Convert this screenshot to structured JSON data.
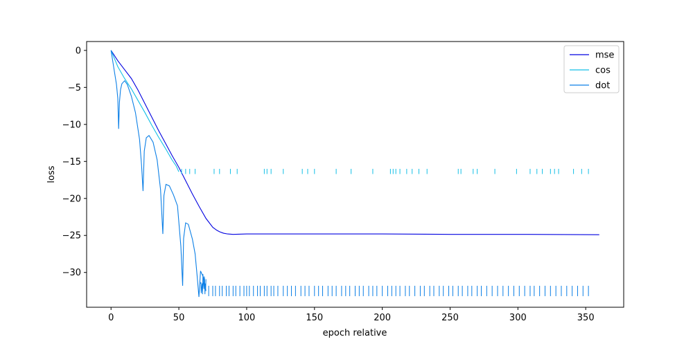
{
  "chart_data": {
    "type": "line",
    "title": "",
    "xlabel": "epoch relative",
    "ylabel": "loss",
    "xlim": [
      -18,
      378
    ],
    "ylim": [
      -34.7,
      1.2
    ],
    "xticks": [
      0,
      50,
      100,
      150,
      200,
      250,
      300,
      350
    ],
    "yticks": [
      0,
      -5,
      -10,
      -15,
      -20,
      -25,
      -30
    ],
    "grid": false,
    "legend_position": "top-right",
    "series": [
      {
        "name": "mse",
        "color": "#0000e0",
        "x": [
          0,
          5,
          10,
          15,
          20,
          25,
          30,
          35,
          40,
          45,
          50,
          55,
          60,
          65,
          70,
          75,
          78,
          80,
          83,
          86,
          90,
          100,
          150,
          200,
          250,
          300,
          360
        ],
        "y": [
          0,
          -1.4,
          -2.6,
          -3.8,
          -5.4,
          -7.2,
          -9.0,
          -10.8,
          -12.5,
          -14.2,
          -15.8,
          -17.6,
          -19.4,
          -21.1,
          -22.7,
          -23.9,
          -24.3,
          -24.5,
          -24.7,
          -24.8,
          -24.85,
          -24.8,
          -24.8,
          -24.8,
          -24.85,
          -24.85,
          -24.9
        ]
      },
      {
        "name": "cos",
        "color": "#12bfe6",
        "x": [
          0,
          5,
          10,
          15,
          20,
          25,
          30,
          35,
          40,
          45,
          48,
          50
        ],
        "y": [
          0,
          -2.2,
          -3.8,
          -5.2,
          -6.8,
          -8.4,
          -10.1,
          -11.7,
          -13.2,
          -14.8,
          -15.6,
          -16.4
        ],
        "spikes_x": [
          52,
          55,
          58,
          62,
          76,
          80,
          88,
          93,
          113,
          115,
          118,
          127,
          141,
          145,
          150,
          166,
          177,
          193,
          206,
          208,
          210,
          213,
          218,
          222,
          227,
          233,
          256,
          258,
          267,
          270,
          283,
          299,
          309,
          314,
          318,
          324,
          327,
          330,
          341,
          347,
          352
        ],
        "spikes_from": -16.7,
        "spikes_to": -16.0
      },
      {
        "name": "dot",
        "color": "#0b7fe6",
        "x": [
          0,
          2,
          4,
          5,
          5.6,
          6.2,
          7,
          8,
          10,
          12,
          15,
          18,
          21,
          22.5,
          23.6,
          24.5,
          26,
          28,
          31,
          34,
          36.5,
          38.2,
          39,
          40.5,
          43,
          46,
          49,
          51.5,
          52.8,
          53.5,
          55,
          57,
          60,
          62,
          63.5,
          64.8,
          66,
          68,
          70
        ],
        "y": [
          0,
          -2.3,
          -4.6,
          -6.5,
          -10.6,
          -7.0,
          -5.3,
          -4.5,
          -4.1,
          -4.6,
          -6.2,
          -8.4,
          -12.0,
          -15.5,
          -19.0,
          -13.6,
          -11.8,
          -11.5,
          -12.4,
          -14.8,
          -18.8,
          -24.8,
          -19.6,
          -18.1,
          -18.3,
          -19.5,
          -21.0,
          -26.5,
          -31.8,
          -25.4,
          -23.3,
          -23.5,
          -25.5,
          -27.5,
          -30.5,
          -33.3,
          -29.8,
          -30.6,
          -32.5
        ],
        "noise_from_x": 66,
        "noise_to_x": 70,
        "noise_low": -33.2,
        "noise_high": -29.8,
        "spikes_x": [
          72,
          75,
          77,
          80,
          82,
          85,
          87,
          90,
          92,
          95,
          98,
          100,
          102,
          105,
          108,
          110,
          113,
          115,
          118,
          120,
          123,
          127,
          130,
          133,
          136,
          140,
          143,
          146,
          150,
          153,
          156,
          160,
          163,
          166,
          170,
          173,
          176,
          180,
          183,
          186,
          190,
          193,
          196,
          200,
          204,
          207,
          210,
          213,
          217,
          220,
          224,
          228,
          231,
          235,
          238,
          242,
          245,
          249,
          252,
          256,
          259,
          263,
          266,
          270,
          273,
          277,
          281,
          285,
          289,
          293,
          297,
          301,
          305,
          309,
          312,
          316,
          320,
          324,
          328,
          332,
          336,
          340,
          344,
          348,
          352
        ],
        "spikes_from": -33.2,
        "spikes_to": -31.8
      }
    ]
  }
}
